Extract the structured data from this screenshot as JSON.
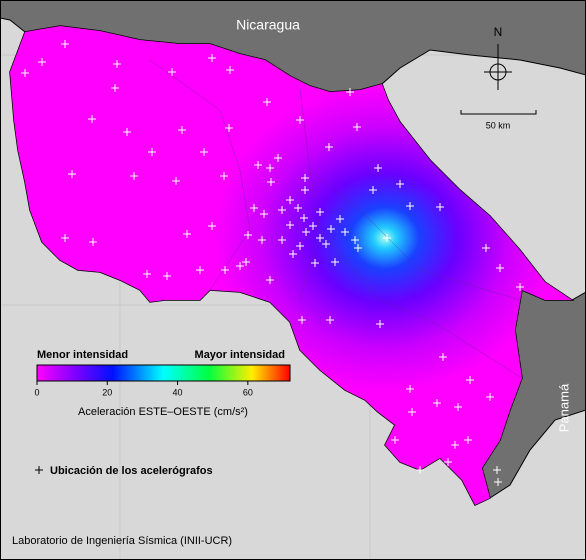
{
  "map": {
    "labels": {
      "nicaragua": "Nicaragua",
      "panama": "Panamá"
    },
    "compass": "N",
    "scale_bar": "50 km",
    "colorbar": {
      "low_label": "Menor intensidad",
      "high_label": "Mayor intensidad",
      "range": [
        0,
        72
      ],
      "ticks": [
        0,
        20,
        40,
        60
      ],
      "axis_label": "Aceleración ESTE–OESTE (cm/s²)"
    },
    "legend": "Ubicación de los acelerógrafos",
    "credit": "Laboratorio de Ingeniería Sísmica (INII-UCR)"
  }
}
